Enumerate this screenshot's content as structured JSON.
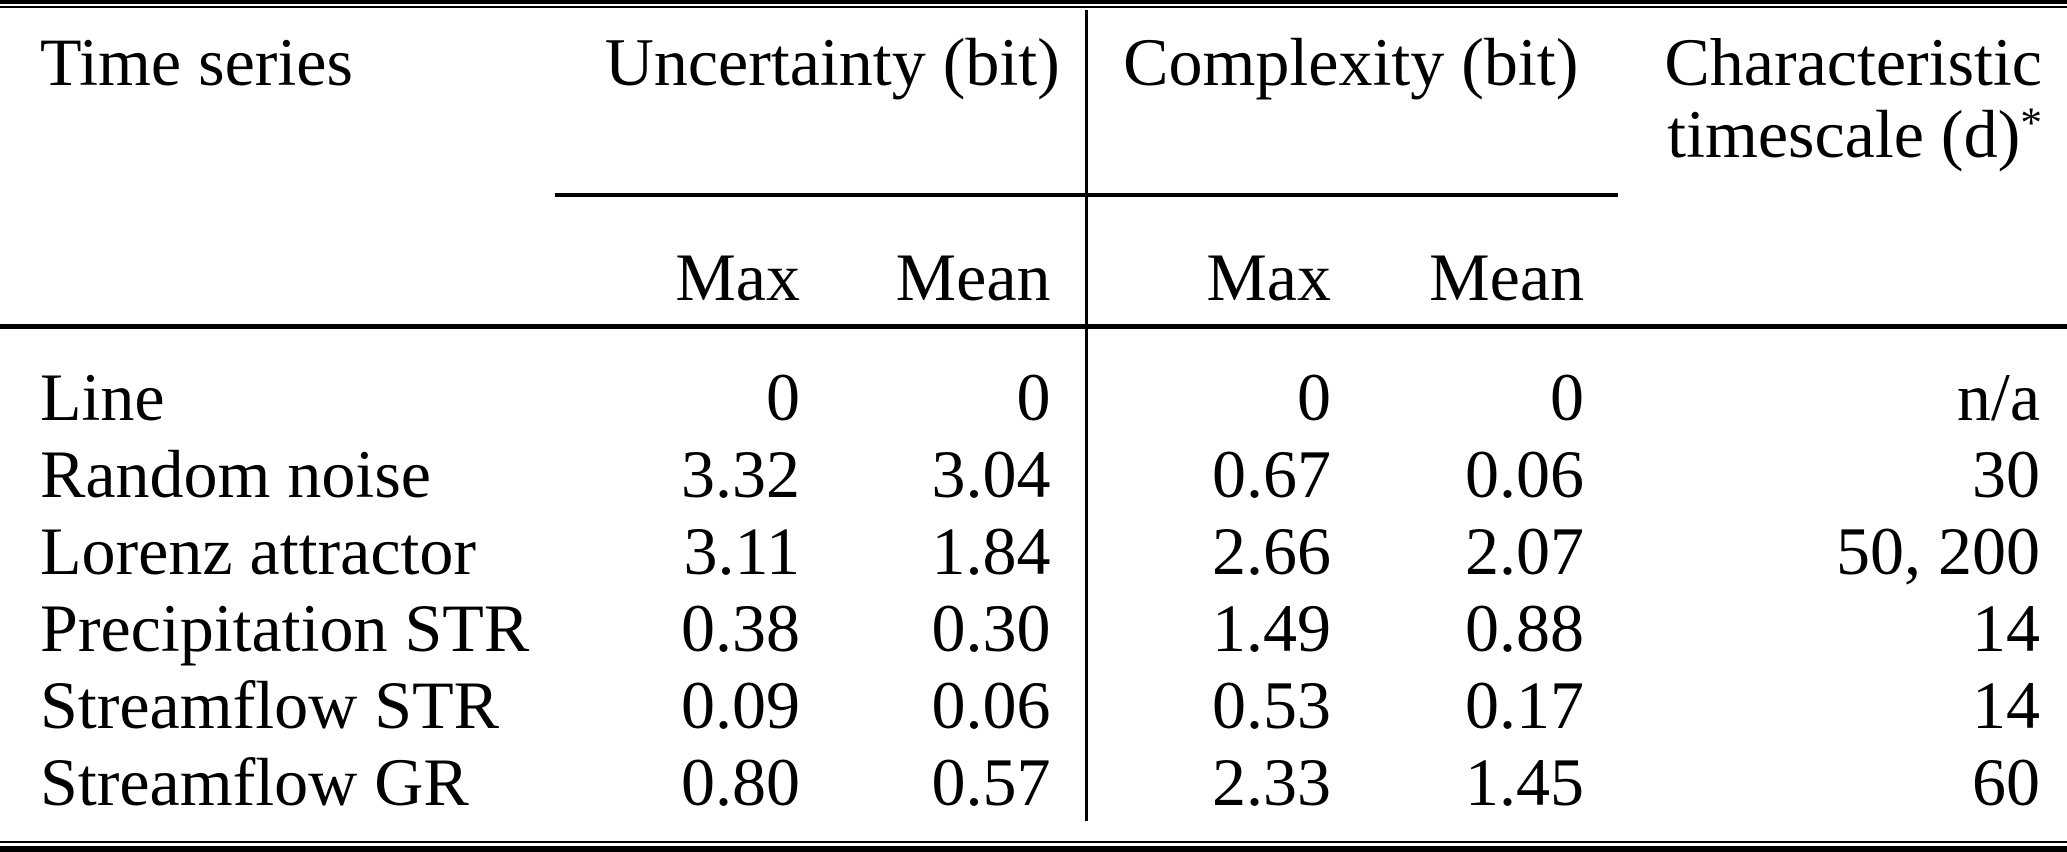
{
  "colors": {
    "background": "#ffffff",
    "text": "#000000",
    "rule": "#000000"
  },
  "table": {
    "header": {
      "time_series": "Time series",
      "uncertainty_group": "Uncertainty (bit)",
      "complexity_group": "Complexity (bit)",
      "characteristic_line1": "Characteristic",
      "characteristic_line2": "timescale (d)",
      "footnote_marker": "*",
      "uncertainty_max": "Max",
      "uncertainty_mean": "Mean",
      "complexity_max": "Max",
      "complexity_mean": "Mean"
    },
    "rows": [
      {
        "time_series": "Line",
        "uncertainty_max": "0",
        "uncertainty_mean": "0",
        "complexity_max": "0",
        "complexity_mean": "0",
        "timescale": "n/a"
      },
      {
        "time_series": "Random noise",
        "uncertainty_max": "3.32",
        "uncertainty_mean": "3.04",
        "complexity_max": "0.67",
        "complexity_mean": "0.06",
        "timescale": "30"
      },
      {
        "time_series": "Lorenz attractor",
        "uncertainty_max": "3.11",
        "uncertainty_mean": "1.84",
        "complexity_max": "2.66",
        "complexity_mean": "2.07",
        "timescale": "50, 200"
      },
      {
        "time_series": "Precipitation STR",
        "uncertainty_max": "0.38",
        "uncertainty_mean": "0.30",
        "complexity_max": "1.49",
        "complexity_mean": "0.88",
        "timescale": "14"
      },
      {
        "time_series": "Streamflow STR",
        "uncertainty_max": "0.09",
        "uncertainty_mean": "0.06",
        "complexity_max": "0.53",
        "complexity_mean": "0.17",
        "timescale": "14"
      },
      {
        "time_series": "Streamflow GR",
        "uncertainty_max": "0.80",
        "uncertainty_mean": "0.57",
        "complexity_max": "2.33",
        "complexity_mean": "1.45",
        "timescale": "60"
      }
    ]
  }
}
